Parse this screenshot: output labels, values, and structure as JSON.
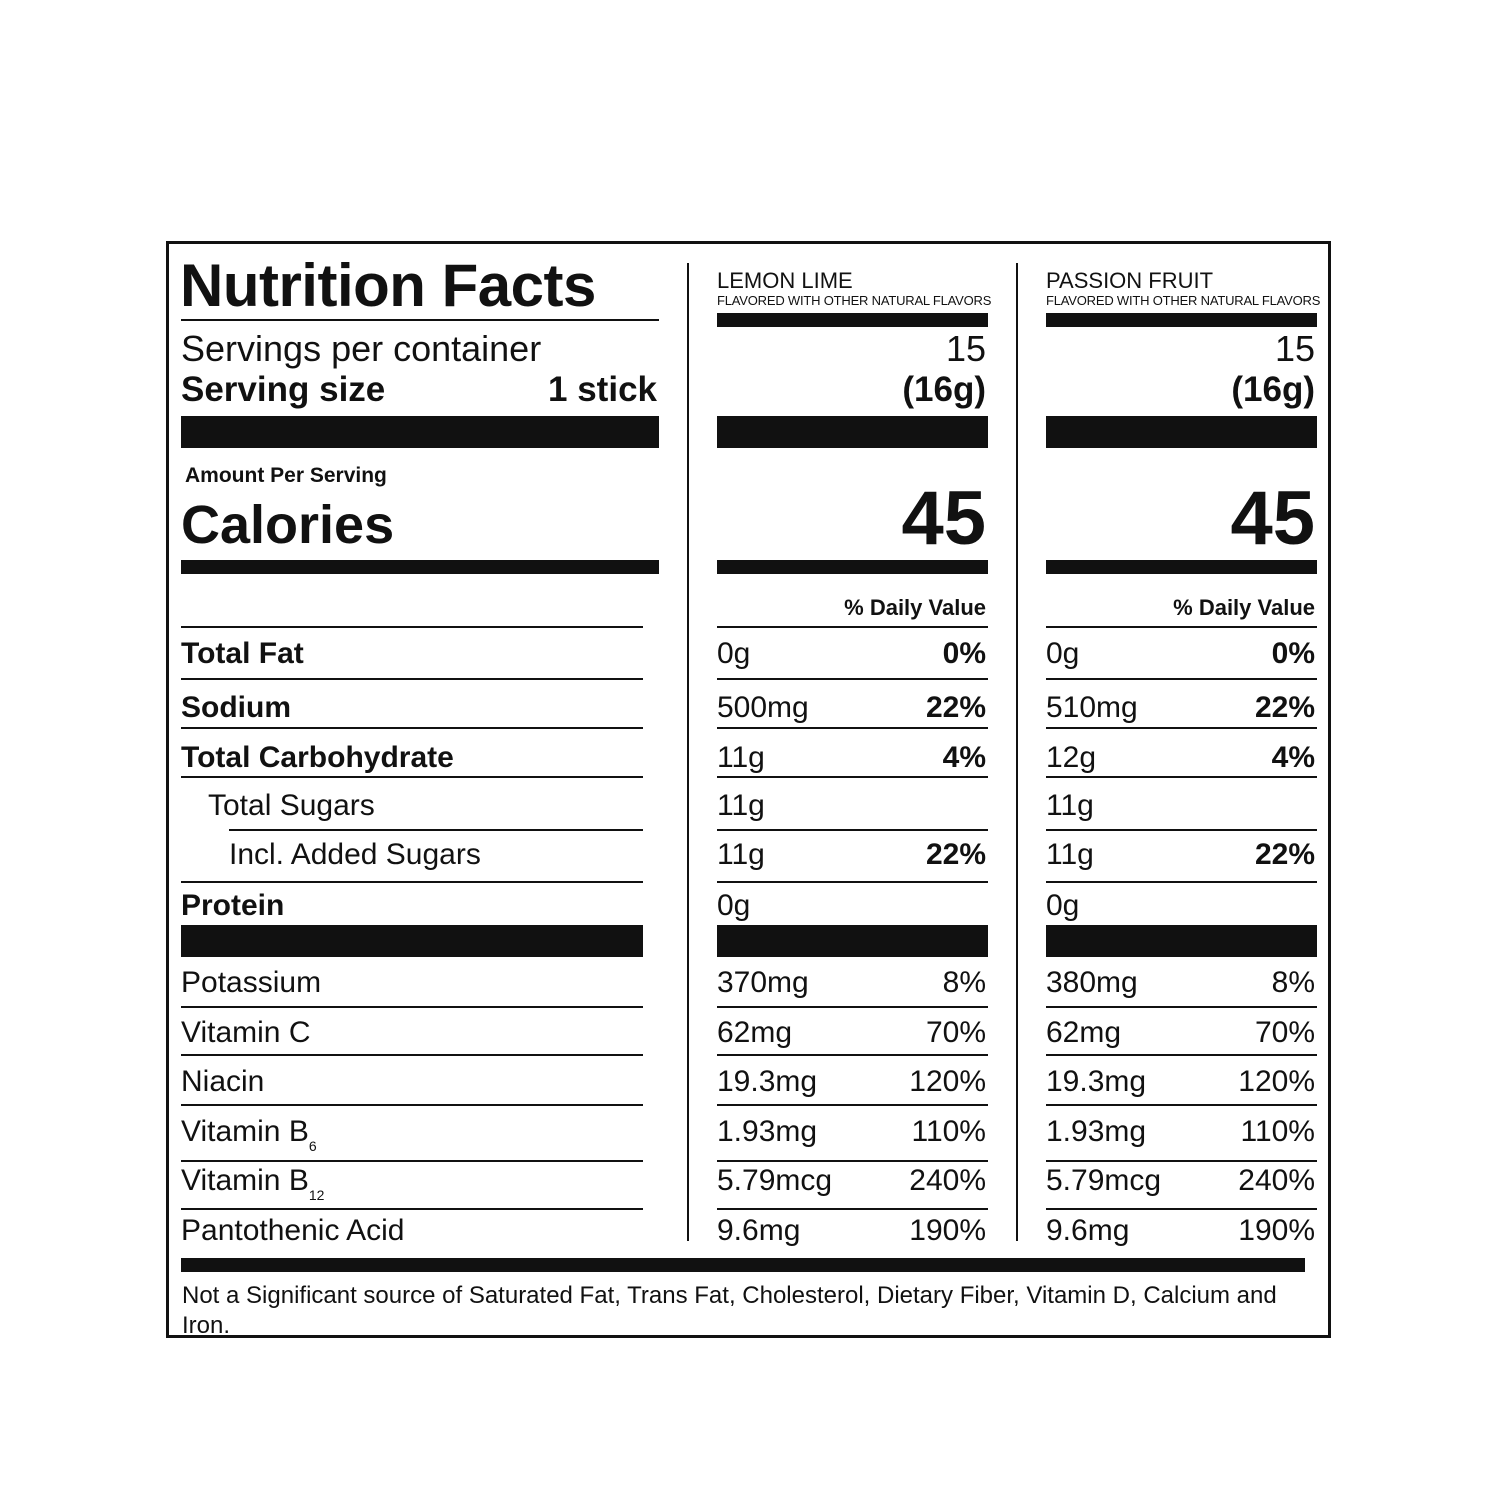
{
  "title": "Nutrition Facts",
  "servings_label": "Servings per container",
  "serving_size_label": "Serving size",
  "serving_size_value": "1 stick",
  "amount_per_serving": "Amount Per Serving",
  "calories_label": "Calories",
  "daily_value_label": "% Daily Value",
  "footnote": "Not a Significant source of Saturated Fat, Trans Fat, Cholesterol, Dietary Fiber, Vitamin D, Calcium and Iron.",
  "nutrients": [
    {
      "label": "Total Fat",
      "bold": true
    },
    {
      "label": "Sodium",
      "bold": true
    },
    {
      "label": "Total Carbohydrate",
      "bold": true
    },
    {
      "label": "Total Sugars",
      "bold": false
    },
    {
      "label": "Incl. Added Sugars",
      "bold": false
    },
    {
      "label": "Protein",
      "bold": true
    }
  ],
  "vitamins": [
    {
      "label": "Potassium",
      "sub": ""
    },
    {
      "label": "Vitamin C",
      "sub": ""
    },
    {
      "label": "Niacin",
      "sub": ""
    },
    {
      "label": "Vitamin B",
      "sub": "6"
    },
    {
      "label": "Vitamin B",
      "sub": "12"
    },
    {
      "label": "Pantothenic Acid",
      "sub": ""
    }
  ],
  "columns": [
    {
      "flavor": "LEMON LIME",
      "flavor_note": "FLAVORED WITH OTHER NATURAL FLAVORS",
      "servings": "15",
      "serving_weight": "(16g)",
      "calories": "45",
      "nutrients": [
        {
          "amount": "0g",
          "dv": "0%"
        },
        {
          "amount": "500mg",
          "dv": "22%"
        },
        {
          "amount": "11g",
          "dv": "4%"
        },
        {
          "amount": "11g",
          "dv": ""
        },
        {
          "amount": "11g",
          "dv": "22%"
        },
        {
          "amount": "0g",
          "dv": ""
        }
      ],
      "vitamins": [
        {
          "amount": "370mg",
          "dv": "8%"
        },
        {
          "amount": "62mg",
          "dv": "70%"
        },
        {
          "amount": "19.3mg",
          "dv": "120%"
        },
        {
          "amount": "1.93mg",
          "dv": "110%"
        },
        {
          "amount": "5.79mcg",
          "dv": "240%"
        },
        {
          "amount": "9.6mg",
          "dv": "190%"
        }
      ]
    },
    {
      "flavor": "PASSION FRUIT",
      "flavor_note": "FLAVORED WITH OTHER NATURAL FLAVORS",
      "servings": "15",
      "serving_weight": "(16g)",
      "calories": "45",
      "nutrients": [
        {
          "amount": "0g",
          "dv": "0%"
        },
        {
          "amount": "510mg",
          "dv": "22%"
        },
        {
          "amount": "12g",
          "dv": "4%"
        },
        {
          "amount": "11g",
          "dv": ""
        },
        {
          "amount": "11g",
          "dv": "22%"
        },
        {
          "amount": "0g",
          "dv": ""
        }
      ],
      "vitamins": [
        {
          "amount": "380mg",
          "dv": "8%"
        },
        {
          "amount": "62mg",
          "dv": "70%"
        },
        {
          "amount": "19.3mg",
          "dv": "120%"
        },
        {
          "amount": "1.93mg",
          "dv": "110%"
        },
        {
          "amount": "5.79mcg",
          "dv": "240%"
        },
        {
          "amount": "9.6mg",
          "dv": "190%"
        }
      ]
    }
  ]
}
